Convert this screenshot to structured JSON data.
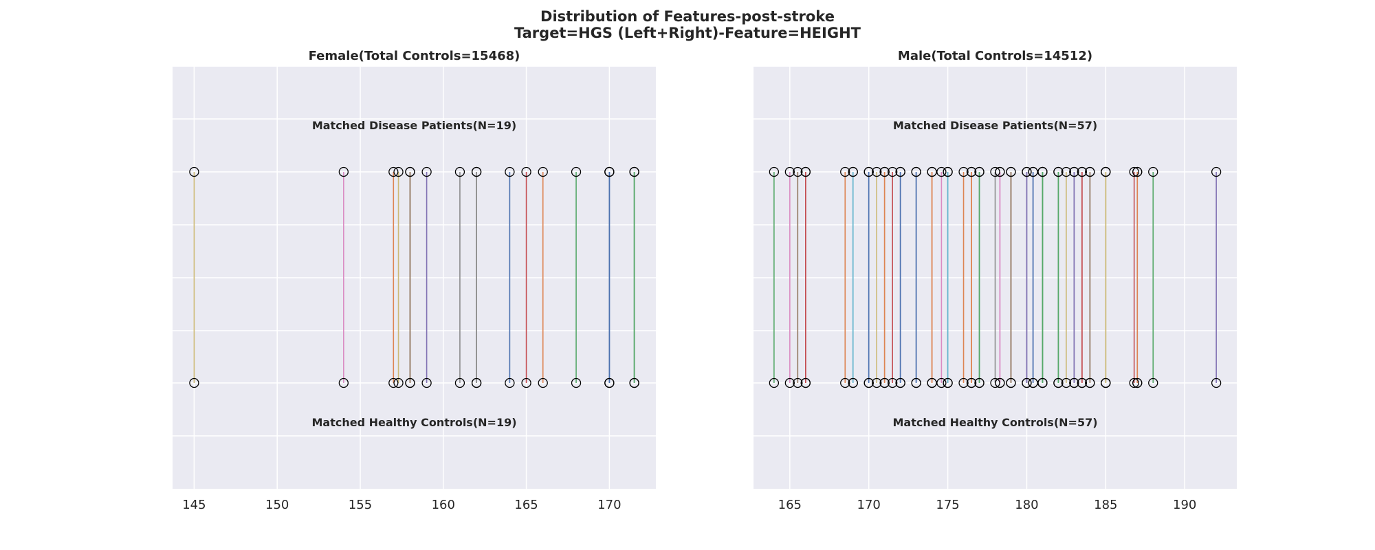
{
  "figure": {
    "title_line1": "Distribution of Features-post-stroke",
    "title_line2": "Target=HGS (Left+Right)-Feature=HEIGHT"
  },
  "chart_data": [
    {
      "type": "scatter",
      "title": "Female(Total Controls=15468)",
      "xlabel": "",
      "ylabel": "",
      "grid": true,
      "xlim": [
        143.7,
        172.8
      ],
      "xticks": [
        145,
        150,
        155,
        160,
        165,
        170
      ],
      "upper_label": "Matched Disease Patients(N=19)",
      "lower_label": "Matched Healthy Controls(N=19)",
      "pairs": [
        {
          "patient": 145,
          "control": 145,
          "color": "#ccb974"
        },
        {
          "patient": 154,
          "control": 154,
          "color": "#da8bc3"
        },
        {
          "patient": 157,
          "control": 157,
          "color": "#dd8452"
        },
        {
          "patient": 157.3,
          "control": 157.3,
          "color": "#ccb974"
        },
        {
          "patient": 158,
          "control": 158,
          "color": "#937860"
        },
        {
          "patient": 158,
          "control": 158,
          "color": "#937860"
        },
        {
          "patient": 159,
          "control": 159,
          "color": "#8172b3"
        },
        {
          "patient": 161,
          "control": 161,
          "color": "#8c8c8c"
        },
        {
          "patient": 162,
          "control": 162,
          "color": "#8c8c8c"
        },
        {
          "patient": 162,
          "control": 162,
          "color": "#8c8c8c"
        },
        {
          "patient": 164,
          "control": 164,
          "color": "#4c72b0"
        },
        {
          "patient": 165,
          "control": 165,
          "color": "#c44e52"
        },
        {
          "patient": 166,
          "control": 166,
          "color": "#dd8452"
        },
        {
          "patient": 168,
          "control": 168,
          "color": "#55a868"
        },
        {
          "patient": 170,
          "control": 170,
          "color": "#4c72b0"
        },
        {
          "patient": 170,
          "control": 170,
          "color": "#4c72b0"
        },
        {
          "patient": 170,
          "control": 170,
          "color": "#4c72b0"
        },
        {
          "patient": 171.5,
          "control": 171.5,
          "color": "#55a868"
        },
        {
          "patient": 171.5,
          "control": 171.5,
          "color": "#55a868"
        }
      ]
    },
    {
      "type": "scatter",
      "title": "Male(Total Controls=14512)",
      "xlabel": "",
      "ylabel": "",
      "grid": true,
      "xlim": [
        162.7,
        193.3
      ],
      "xticks": [
        165,
        170,
        175,
        180,
        185,
        190
      ],
      "upper_label": "Matched Disease Patients(N=57)",
      "lower_label": "Matched Healthy Controls(N=57)",
      "pairs": [
        {
          "patient": 164,
          "control": 164,
          "color": "#55a868"
        },
        {
          "patient": 165,
          "control": 165,
          "color": "#da8bc3"
        },
        {
          "patient": 165.5,
          "control": 165.5,
          "color": "#937860"
        },
        {
          "patient": 166,
          "control": 166,
          "color": "#c44e52"
        },
        {
          "patient": 166,
          "control": 166,
          "color": "#c44e52"
        },
        {
          "patient": 168.5,
          "control": 168.5,
          "color": "#dd8452"
        },
        {
          "patient": 169,
          "control": 169,
          "color": "#64b5cd"
        },
        {
          "patient": 169,
          "control": 169,
          "color": "#64b5cd"
        },
        {
          "patient": 170,
          "control": 170,
          "color": "#4c72b0"
        },
        {
          "patient": 170,
          "control": 170,
          "color": "#4c72b0"
        },
        {
          "patient": 170.5,
          "control": 170.5,
          "color": "#ccb974"
        },
        {
          "patient": 171,
          "control": 171,
          "color": "#dd8452"
        },
        {
          "patient": 171,
          "control": 171,
          "color": "#dd8452"
        },
        {
          "patient": 171.5,
          "control": 171.5,
          "color": "#c44e52"
        },
        {
          "patient": 172,
          "control": 172,
          "color": "#4c72b0"
        },
        {
          "patient": 172,
          "control": 172,
          "color": "#4c72b0"
        },
        {
          "patient": 173,
          "control": 173,
          "color": "#4c72b0"
        },
        {
          "patient": 173,
          "control": 173,
          "color": "#4c72b0"
        },
        {
          "patient": 174,
          "control": 174,
          "color": "#dd8452"
        },
        {
          "patient": 174,
          "control": 174,
          "color": "#dd8452"
        },
        {
          "patient": 174.6,
          "control": 174.6,
          "color": "#da8bc3"
        },
        {
          "patient": 175,
          "control": 175,
          "color": "#64b5cd"
        },
        {
          "patient": 175,
          "control": 175,
          "color": "#64b5cd"
        },
        {
          "patient": 176,
          "control": 176,
          "color": "#dd8452"
        },
        {
          "patient": 176.5,
          "control": 176.5,
          "color": "#dd8452"
        },
        {
          "patient": 176.5,
          "control": 176.5,
          "color": "#dd8452"
        },
        {
          "patient": 177,
          "control": 177,
          "color": "#55a868"
        },
        {
          "patient": 177,
          "control": 177,
          "color": "#55a868"
        },
        {
          "patient": 178,
          "control": 178,
          "color": "#8c8c8c"
        },
        {
          "patient": 178.3,
          "control": 178.3,
          "color": "#da8bc3"
        },
        {
          "patient": 178.3,
          "control": 178.3,
          "color": "#da8bc3"
        },
        {
          "patient": 179,
          "control": 179,
          "color": "#937860"
        },
        {
          "patient": 179,
          "control": 179,
          "color": "#937860"
        },
        {
          "patient": 180,
          "control": 180,
          "color": "#8172b3"
        },
        {
          "patient": 180,
          "control": 180,
          "color": "#8172b3"
        },
        {
          "patient": 180.4,
          "control": 180.4,
          "color": "#4c72b0"
        },
        {
          "patient": 180.4,
          "control": 180.4,
          "color": "#4c72b0"
        },
        {
          "patient": 181,
          "control": 181,
          "color": "#55a868"
        },
        {
          "patient": 181,
          "control": 181,
          "color": "#55a868"
        },
        {
          "patient": 181,
          "control": 181,
          "color": "#55a868"
        },
        {
          "patient": 182,
          "control": 182,
          "color": "#55a868"
        },
        {
          "patient": 182,
          "control": 182,
          "color": "#55a868"
        },
        {
          "patient": 182.5,
          "control": 182.5,
          "color": "#ccb974"
        },
        {
          "patient": 183,
          "control": 183,
          "color": "#8172b3"
        },
        {
          "patient": 183,
          "control": 183,
          "color": "#8172b3"
        },
        {
          "patient": 183.5,
          "control": 183.5,
          "color": "#c44e52"
        },
        {
          "patient": 183.5,
          "control": 183.5,
          "color": "#c44e52"
        },
        {
          "patient": 184,
          "control": 184,
          "color": "#937860"
        },
        {
          "patient": 184,
          "control": 184,
          "color": "#937860"
        },
        {
          "patient": 185,
          "control": 185,
          "color": "#ccb974"
        },
        {
          "patient": 185,
          "control": 185,
          "color": "#ccb974"
        },
        {
          "patient": 185,
          "control": 185,
          "color": "#ccb974"
        },
        {
          "patient": 186.8,
          "control": 186.8,
          "color": "#c44e52"
        },
        {
          "patient": 187,
          "control": 187,
          "color": "#dd8452"
        },
        {
          "patient": 187,
          "control": 187,
          "color": "#dd8452"
        },
        {
          "patient": 188,
          "control": 188,
          "color": "#55a868"
        },
        {
          "patient": 192,
          "control": 192,
          "color": "#8172b3"
        }
      ]
    }
  ],
  "colors": {
    "axes_background": "#eaeaf2",
    "grid": "#ffffff",
    "marker_edge": "#000000",
    "text": "#262626"
  }
}
